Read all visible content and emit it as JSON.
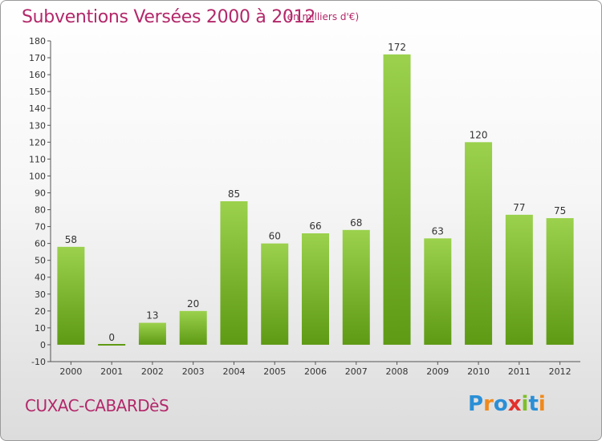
{
  "title": "Subventions Versées 2000 à 2012",
  "subtitle": "(en milliers d'€)",
  "commune": "CUXAC-CABARDèS",
  "logo": {
    "letters": [
      "P",
      "r",
      "o",
      "x",
      "i",
      "t",
      "i"
    ],
    "colors": [
      "#2a8fd6",
      "#f08a1c",
      "#2a8fd6",
      "#e2312c",
      "#7fbf2a",
      "#2a8fd6",
      "#f08a1c"
    ]
  },
  "colors": {
    "bar_top": "#9bd14d",
    "bar_bottom": "#5e9a14",
    "title": "#b3286a"
  },
  "chart_data": {
    "type": "bar",
    "categories": [
      "2000",
      "2001",
      "2002",
      "2003",
      "2004",
      "2005",
      "2006",
      "2007",
      "2008",
      "2009",
      "2010",
      "2011",
      "2012"
    ],
    "values": [
      58,
      0,
      13,
      20,
      85,
      60,
      66,
      68,
      172,
      63,
      120,
      77,
      75
    ],
    "ylim": [
      -10,
      180
    ],
    "yticks": [
      -10,
      0,
      10,
      20,
      30,
      40,
      50,
      60,
      70,
      80,
      90,
      100,
      110,
      120,
      130,
      140,
      150,
      160,
      170,
      180
    ],
    "grid": false,
    "title": "Subventions Versées 2000 à 2012",
    "xlabel": "",
    "ylabel": ""
  }
}
